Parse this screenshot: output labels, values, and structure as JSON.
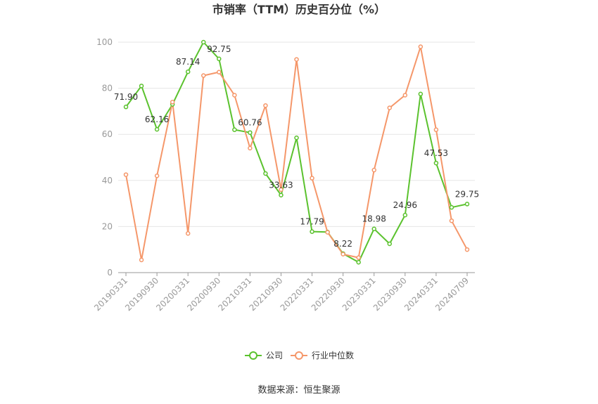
{
  "chart_data": {
    "type": "line",
    "title": "市销率（TTM）历史百分位（%）",
    "xlabel": "",
    "ylabel": "",
    "ylim": [
      0,
      100
    ],
    "yticks": [
      0,
      20,
      40,
      60,
      80,
      100
    ],
    "grid": true,
    "legend": "bottom",
    "x": [
      "20190331",
      "20190630",
      "20190930",
      "20191231",
      "20200331",
      "20200630",
      "20200930",
      "20201231",
      "20210331",
      "20210630",
      "20210930",
      "20211231",
      "20220331",
      "20220630",
      "20220930",
      "20221231",
      "20230331",
      "20230630",
      "20230930",
      "20231231",
      "20240331",
      "20240630",
      "20240709"
    ],
    "xtick_labels": [
      "20190331",
      "20190930",
      "20200331",
      "20200930",
      "20210331",
      "20210930",
      "20220331",
      "20220930",
      "20230331",
      "20230930",
      "20240331",
      "20240709"
    ],
    "series": [
      {
        "name": "公司",
        "color": "#5bc22e",
        "values": [
          71.9,
          81.0,
          62.16,
          73.0,
          87.14,
          100.0,
          92.75,
          62.0,
          60.76,
          43.0,
          33.63,
          58.5,
          17.79,
          17.6,
          8.22,
          4.5,
          18.98,
          12.5,
          24.96,
          77.5,
          47.53,
          28.3,
          29.75
        ],
        "labels": [
          "71.90",
          null,
          "62.16",
          null,
          "87.14",
          null,
          "92.75",
          null,
          "60.76",
          null,
          "33.63",
          null,
          "17.79",
          null,
          "8.22",
          null,
          "18.98",
          null,
          "24.96",
          null,
          "47.53",
          null,
          "29.75"
        ]
      },
      {
        "name": "行业中位数",
        "color": "#f5976a",
        "values": [
          42.5,
          5.5,
          42.0,
          74.0,
          17.0,
          85.5,
          87.0,
          77.0,
          54.0,
          72.5,
          36.0,
          92.5,
          41.0,
          17.5,
          8.0,
          6.5,
          44.5,
          71.5,
          77.0,
          98.0,
          62.0,
          22.5,
          10.0
        ]
      }
    ]
  },
  "source": "数据来源：恒生聚源"
}
